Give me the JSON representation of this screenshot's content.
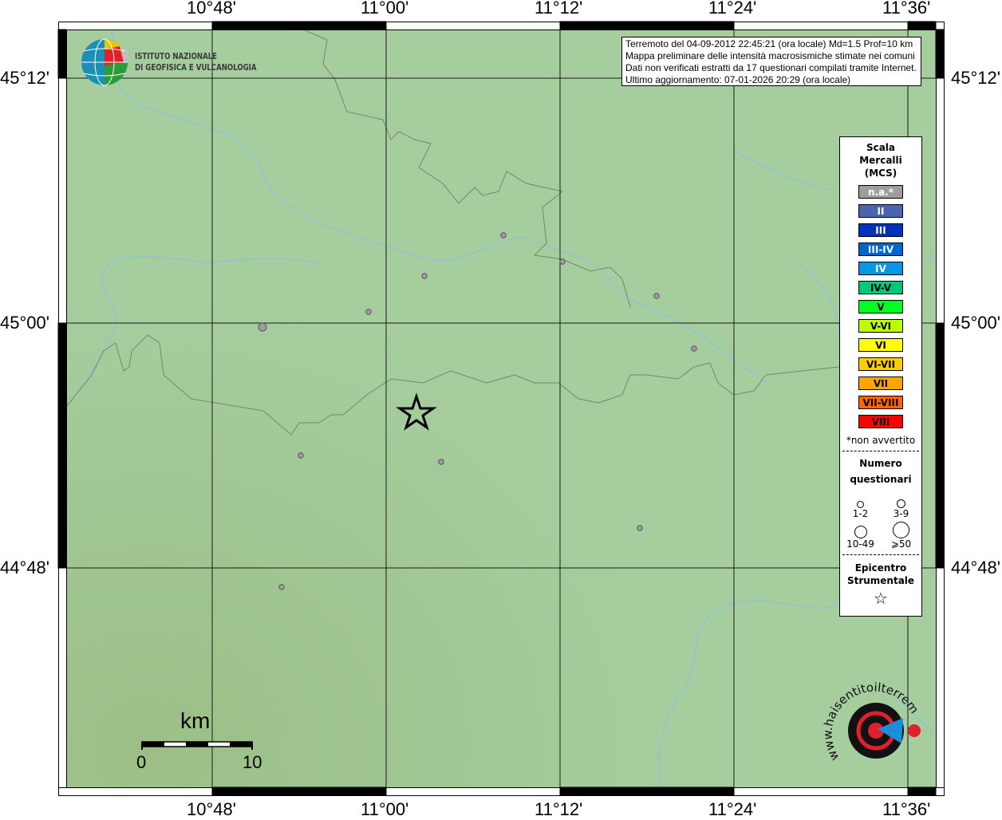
{
  "axes": {
    "lon_labels": [
      "10°48'",
      "11°00'",
      "11°12'",
      "11°24'",
      "11°36'"
    ],
    "lat_labels": [
      "45°12'",
      "45°00'",
      "44°48'"
    ]
  },
  "info_box": {
    "line1": "Terremoto del 04-09-2012 22:45:21 (ora locale) Md=1.5 Prof=10 km",
    "line2": "Mappa preliminare delle intensità macrosismiche stimate nei comuni",
    "line3": "Dati non verificati estratti da 17 questionari compilati tramite Internet.",
    "line4": "Ultimo aggiornamento: 07-01-2026 20:29 (ora locale)"
  },
  "logo_ingv": {
    "line1": "ISTITUTO NAZIONALE",
    "line2": "DI GEOFISICA E VULCANOLOGIA"
  },
  "logo_hsit": {
    "text": "www.haisentitoilterremoto.it"
  },
  "legend": {
    "title1": "Scala",
    "title2": "Mercalli",
    "title3": "(MCS)",
    "classes": [
      {
        "label": "n.a.*",
        "color": "#9e9e9e",
        "text": "#ffffff"
      },
      {
        "label": "II",
        "color": "#4a64ad",
        "text": "#ffffff"
      },
      {
        "label": "III",
        "color": "#0033bb",
        "text": "#ffffff"
      },
      {
        "label": "III-IV",
        "color": "#0066cc",
        "text": "#ffffff"
      },
      {
        "label": "IV",
        "color": "#0099e6",
        "text": "#ffffff"
      },
      {
        "label": "IV-V",
        "color": "#00c878",
        "text": "#000000"
      },
      {
        "label": "V",
        "color": "#00ff22",
        "text": "#000000"
      },
      {
        "label": "V-VI",
        "color": "#bbff00",
        "text": "#000000"
      },
      {
        "label": "VI",
        "color": "#ffff00",
        "text": "#000000"
      },
      {
        "label": "VI-VII",
        "color": "#ffcc00",
        "text": "#000000"
      },
      {
        "label": "VII",
        "color": "#ffa500",
        "text": "#000000"
      },
      {
        "label": "VII-VIII",
        "color": "#ff6600",
        "text": "#000000"
      },
      {
        "label": "VIII",
        "color": "#ff0000",
        "text": "#000000"
      }
    ],
    "note": "*non avvertito",
    "count_title1": "Numero",
    "count_title2": "questionari",
    "counts": [
      "1-2",
      "3-9",
      "10-49",
      "⩾50"
    ],
    "epicenter_title1": "Epicentro",
    "epicenter_title2": "Strumentale"
  },
  "scale_bar": {
    "unit": "km",
    "start": "0",
    "end": "10"
  },
  "colors": {
    "land": "#a3cc9b",
    "river": "#8ec3d6",
    "boundary": "#7a8f74",
    "point": "#a49aa8"
  }
}
